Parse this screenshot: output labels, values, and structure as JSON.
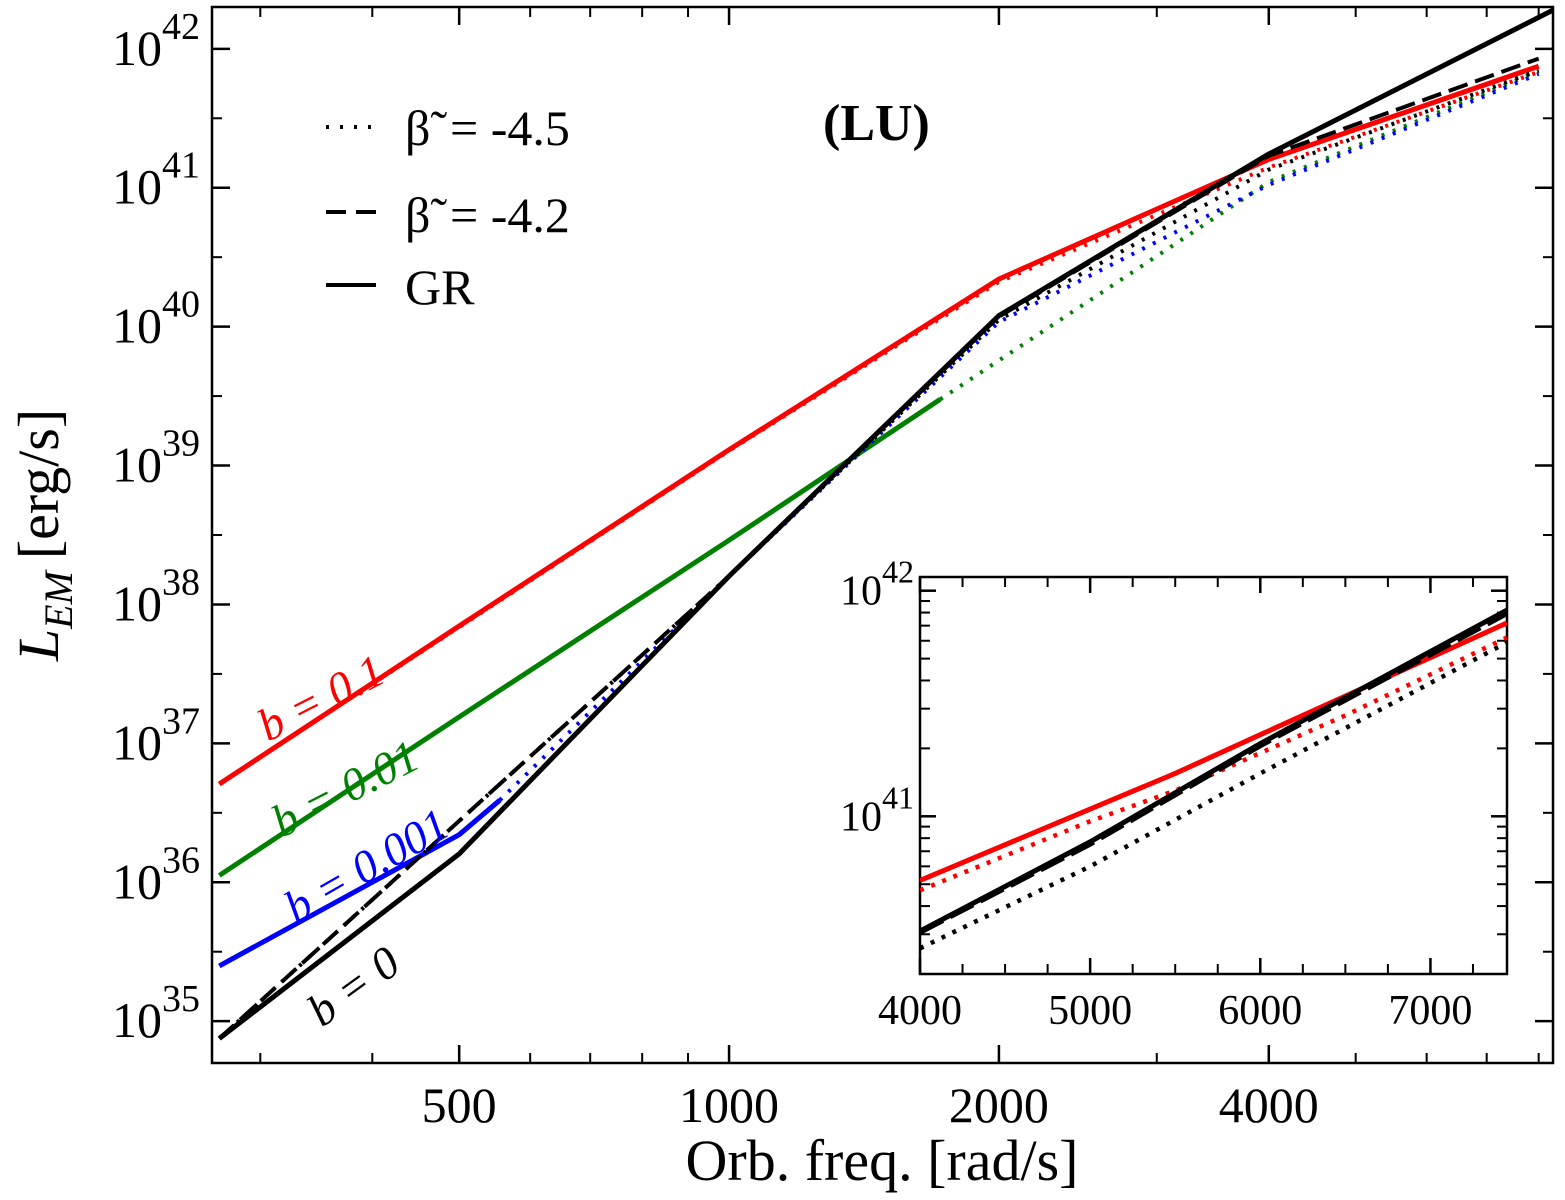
{
  "chart_data": {
    "type": "line",
    "panel_label": "(LU)",
    "xlabel": "Orb. freq. [rad/s]",
    "ylabel_main": "L",
    "ylabel_sub": "EM",
    "ylabel_unit": "[erg/s]",
    "xscale": "log",
    "yscale": "log",
    "xlim": [
      265,
      8300
    ],
    "ylim": [
      5e+34,
      2e+42
    ],
    "xticks": [
      {
        "value": 500,
        "label": "500"
      },
      {
        "value": 1000,
        "label": "1000"
      },
      {
        "value": 2000,
        "label": "2000"
      },
      {
        "value": 4000,
        "label": "4000"
      }
    ],
    "yticks": [
      {
        "exp": 35,
        "base": "10",
        "power": "35"
      },
      {
        "exp": 36,
        "base": "10",
        "power": "36"
      },
      {
        "exp": 37,
        "base": "10",
        "power": "37"
      },
      {
        "exp": 38,
        "base": "10",
        "power": "38"
      },
      {
        "exp": 39,
        "base": "10",
        "power": "39"
      },
      {
        "exp": 40,
        "base": "10",
        "power": "40"
      },
      {
        "exp": 41,
        "base": "10",
        "power": "41"
      },
      {
        "exp": 42,
        "base": "10",
        "power": "42"
      }
    ],
    "legend": {
      "position": "top-left",
      "entries": [
        {
          "style": "dotted",
          "symbol": "β̃",
          "text": "= -4.5"
        },
        {
          "style": "dashed",
          "symbol": "β̃",
          "text": "= -4.2"
        },
        {
          "style": "solid",
          "symbol": "",
          "text": "GR"
        }
      ]
    },
    "curve_labels": [
      {
        "text": "b = 0.1",
        "color": "#ff0000"
      },
      {
        "text": "b = 0.01",
        "color": "#008000"
      },
      {
        "text": "b = 0.001",
        "color": "#0000ff"
      },
      {
        "text": "b = 0",
        "color": "#000000"
      }
    ],
    "series": [
      {
        "name": "b = 0.1 GR",
        "color": "#ff0000",
        "style": "solid",
        "points": [
          [
            270,
            5.1e+36
          ],
          [
            500,
            7e+37
          ],
          [
            1000,
            1.3e+39
          ],
          [
            2000,
            2.2e+40
          ],
          [
            4000,
            1.6e+41
          ],
          [
            8000,
            7.5e+41
          ]
        ]
      },
      {
        "name": "b = 0.1 β̃ = -4.5",
        "color": "#ff0000",
        "style": "dotted",
        "points": [
          [
            270,
            5.1e+36
          ],
          [
            1000,
            1.28e+39
          ],
          [
            2000,
            2.1e+40
          ],
          [
            4000,
            1.4e+41
          ],
          [
            8000,
            6.8e+41
          ]
        ]
      },
      {
        "name": "b = 0.01 GR",
        "color": "#008000",
        "style": "solid",
        "points": [
          [
            270,
            1.12e+36
          ],
          [
            500,
            1.55e+37
          ],
          [
            1000,
            2.9e+38
          ],
          [
            1720,
            3e+39
          ]
        ]
      },
      {
        "name": "b = 0.01 β̃ = -4.5",
        "color": "#008000",
        "style": "dotted",
        "points": [
          [
            1720,
            3e+39
          ],
          [
            4000,
            1.1e+41
          ],
          [
            8000,
            6.9e+41
          ]
        ]
      },
      {
        "name": "b = 0.001 GR",
        "color": "#0000ff",
        "style": "solid",
        "points": [
          [
            270,
            2.5e+35
          ],
          [
            500,
            2.2e+36
          ],
          [
            555,
            3.9e+36
          ]
        ]
      },
      {
        "name": "b = 0.001 β̃ = -4.5",
        "color": "#0000ff",
        "style": "dotted",
        "points": [
          [
            555,
            3.9e+36
          ],
          [
            1000,
            1.6e+38
          ],
          [
            2000,
            1.08e+40
          ],
          [
            4000,
            1.05e+41
          ],
          [
            8000,
            6.6e+41
          ]
        ]
      },
      {
        "name": "b = 0 GR",
        "color": "#000000",
        "style": "solid",
        "points": [
          [
            270,
            7.5e+34
          ],
          [
            500,
            1.6e+36
          ],
          [
            1000,
            1.6e+38
          ],
          [
            2000,
            1.2e+40
          ],
          [
            4000,
            1.75e+41
          ],
          [
            8300,
            1.9e+42
          ]
        ]
      },
      {
        "name": "b = 0 β̃ = -4.2",
        "color": "#000000",
        "style": "dashed",
        "points": [
          [
            270,
            7.5e+34
          ],
          [
            1000,
            1.6e+38
          ],
          [
            2000,
            1.18e+40
          ],
          [
            4000,
            1.7e+41
          ],
          [
            8000,
            8.5e+41
          ]
        ]
      },
      {
        "name": "b = 0 β̃ = -4.5",
        "color": "#000000",
        "style": "dotted",
        "points": [
          [
            270,
            7.5e+34
          ],
          [
            1000,
            1.6e+38
          ],
          [
            2000,
            1.12e+40
          ],
          [
            4000,
            1.35e+41
          ],
          [
            8000,
            7e+41
          ]
        ]
      }
    ],
    "inset": {
      "xscale": "linear",
      "yscale": "log",
      "xlim": [
        4000,
        7450
      ],
      "ylim": [
        2e+40,
        1.15e+42
      ],
      "xticks": [
        {
          "value": 4000,
          "label": "4000"
        },
        {
          "value": 5000,
          "label": "5000"
        },
        {
          "value": 6000,
          "label": "6000"
        },
        {
          "value": 7000,
          "label": "7000"
        }
      ],
      "yticks": [
        {
          "exp": 41,
          "base": "10",
          "power": "41"
        },
        {
          "exp": 42,
          "base": "10",
          "power": "42"
        }
      ],
      "series": [
        {
          "name": "b = 0.1 GR",
          "color": "#ff0000",
          "style": "solid",
          "points": [
            [
              4000,
              5.2e+40
            ],
            [
              5500,
              1.55e+41
            ],
            [
              6000,
              2.3e+41
            ],
            [
              7450,
              7.2e+41
            ]
          ]
        },
        {
          "name": "b = 0.1 β̃ = -4.5",
          "color": "#ff0000",
          "style": "dotted",
          "points": [
            [
              4000,
              4.7e+40
            ],
            [
              5000,
              9.5e+40
            ],
            [
              5500,
              1.3e+41
            ],
            [
              6500,
              2.8e+41
            ],
            [
              7450,
              6.2e+41
            ]
          ]
        },
        {
          "name": "b = 0 GR",
          "color": "#000000",
          "style": "solid",
          "points": [
            [
              4000,
              3.1e+40
            ],
            [
              5000,
              7.7e+40
            ],
            [
              6000,
              2.1e+41
            ],
            [
              7450,
              8.2e+41
            ]
          ]
        },
        {
          "name": "b = 0 β̃ = -4.2",
          "color": "#000000",
          "style": "dashed",
          "points": [
            [
              4000,
              3.05e+40
            ],
            [
              5000,
              7.5e+40
            ],
            [
              6000,
              2.05e+41
            ],
            [
              7450,
              7.9e+41
            ]
          ]
        },
        {
          "name": "b = 0 β̃ = -4.5",
          "color": "#000000",
          "style": "dotted",
          "points": [
            [
              4000,
              2.6e+40
            ],
            [
              5000,
              6e+40
            ],
            [
              6000,
              1.55e+41
            ],
            [
              7450,
              5.9e+41
            ]
          ]
        }
      ]
    }
  }
}
